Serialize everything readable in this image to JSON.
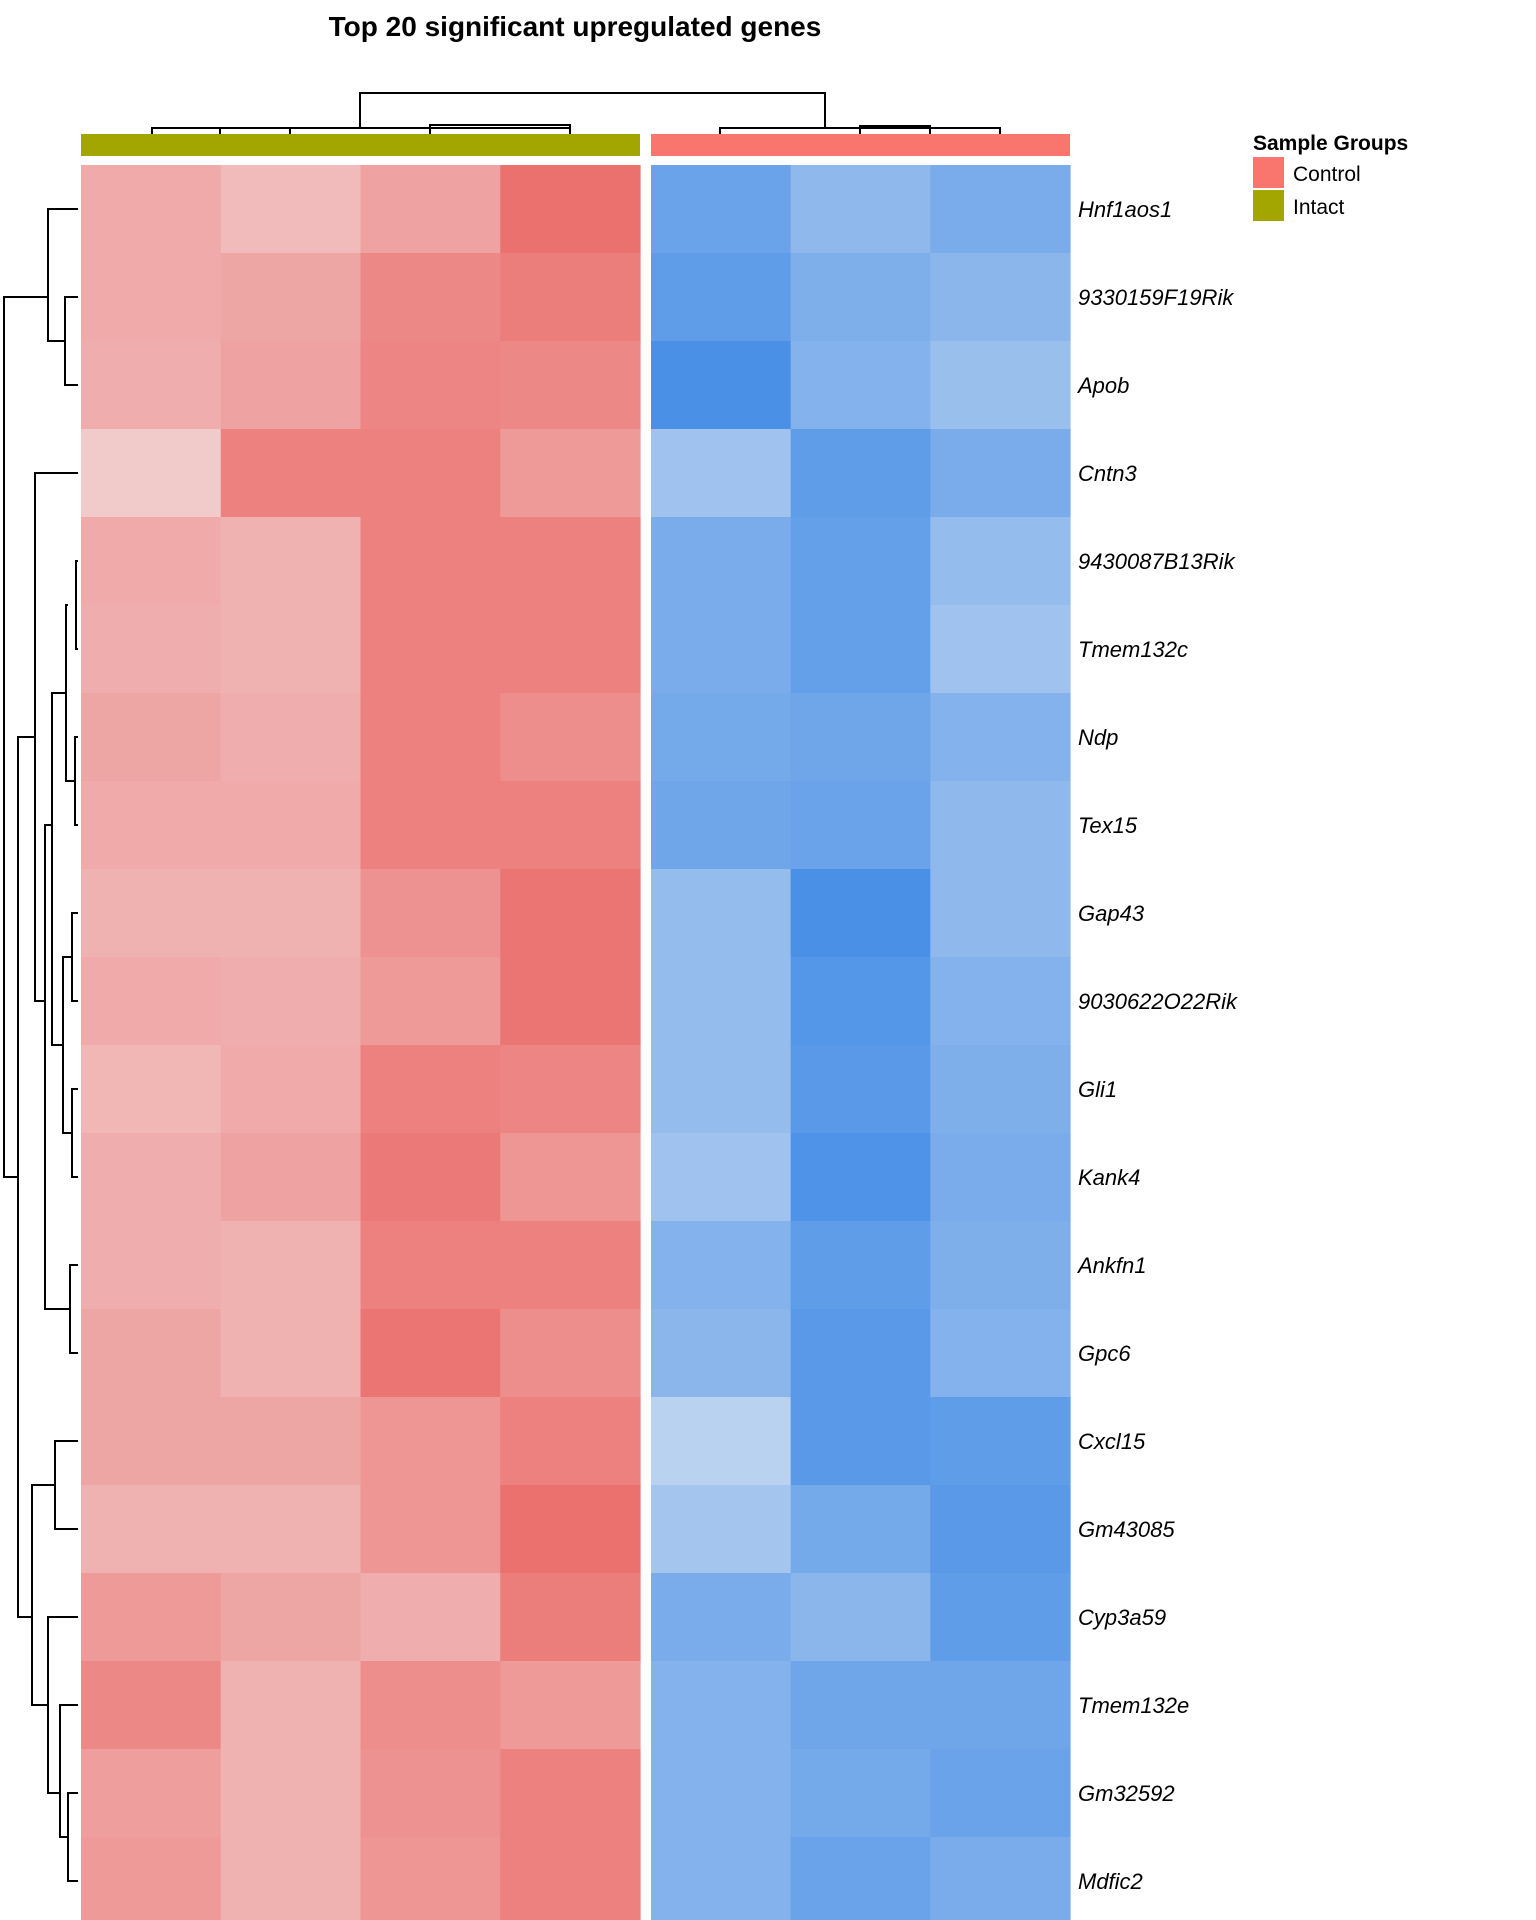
{
  "chart_data": {
    "type": "heatmap",
    "title": "Top 20 significant upregulated genes",
    "legend": {
      "title": "Sample Groups",
      "placement": "top-right",
      "entries": [
        {
          "label": "Control",
          "color": "#F8766D"
        },
        {
          "label": "Intact",
          "color": "#A3A500"
        }
      ]
    },
    "column_groups": [
      {
        "name": "Intact",
        "color": "#A3A500",
        "n_samples": 4
      },
      {
        "name": "Control",
        "color": "#F8766D",
        "n_samples": 3
      }
    ],
    "row_dendrogram": true,
    "column_dendrogram": true,
    "color_scale": {
      "low": "#1F77E4",
      "mid": "#F4F4F4",
      "high": "#E8504D",
      "range": [
        -2,
        2
      ]
    },
    "rows": [
      "Hnf1aos1",
      "9330159F19Rik",
      "Apob",
      "Cntn3",
      "9430087B13Rik",
      "Tmem132c",
      "Ndp",
      "Tex15",
      "Gap43",
      "9030622O22Rik",
      "Gli1",
      "Kank4",
      "Ankfn1",
      "Gpc6",
      "Cxcl15",
      "Gm43085",
      "Cyp3a59",
      "Tmem132e",
      "Gm32592",
      "Mdfic2"
    ],
    "values": [
      [
        0.9,
        0.7,
        1.0,
        1.6,
        -1.3,
        -0.95,
        -1.15
      ],
      [
        0.9,
        0.95,
        1.3,
        1.45,
        -1.4,
        -1.1,
        -1.0
      ],
      [
        0.85,
        1.0,
        1.35,
        1.3,
        -1.6,
        -1.05,
        -0.85
      ],
      [
        0.5,
        1.4,
        1.4,
        1.1,
        -0.8,
        -1.4,
        -1.15
      ],
      [
        0.9,
        0.8,
        1.4,
        1.4,
        -1.15,
        -1.35,
        -0.9
      ],
      [
        0.85,
        0.8,
        1.4,
        1.4,
        -1.15,
        -1.35,
        -0.8
      ],
      [
        0.95,
        0.85,
        1.4,
        1.25,
        -1.2,
        -1.25,
        -1.05
      ],
      [
        0.9,
        0.9,
        1.4,
        1.4,
        -1.25,
        -1.3,
        -0.95
      ],
      [
        0.8,
        0.8,
        1.2,
        1.55,
        -0.9,
        -1.6,
        -0.95
      ],
      [
        0.9,
        0.85,
        1.1,
        1.55,
        -0.9,
        -1.5,
        -1.05
      ],
      [
        0.75,
        0.9,
        1.4,
        1.35,
        -0.9,
        -1.45,
        -1.1
      ],
      [
        0.85,
        1.0,
        1.5,
        1.15,
        -0.8,
        -1.55,
        -1.15
      ],
      [
        0.85,
        0.8,
        1.4,
        1.4,
        -1.05,
        -1.4,
        -1.1
      ],
      [
        0.95,
        0.8,
        1.55,
        1.25,
        -1.0,
        -1.45,
        -1.05
      ],
      [
        0.95,
        0.95,
        1.15,
        1.4,
        -0.55,
        -1.45,
        -1.4
      ],
      [
        0.8,
        0.8,
        1.15,
        1.6,
        -0.75,
        -1.2,
        -1.45
      ],
      [
        1.1,
        0.95,
        0.85,
        1.45,
        -1.15,
        -1.0,
        -1.4
      ],
      [
        1.3,
        0.8,
        1.25,
        1.1,
        -1.05,
        -1.25,
        -1.25
      ],
      [
        1.05,
        0.8,
        1.2,
        1.4,
        -1.05,
        -1.2,
        -1.3
      ],
      [
        1.1,
        0.8,
        1.15,
        1.4,
        -1.05,
        -1.3,
        -1.15
      ]
    ]
  }
}
